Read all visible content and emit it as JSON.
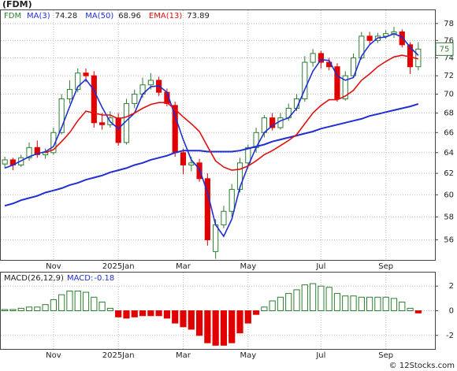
{
  "chart_data": [
    {
      "type": "candlestick",
      "title": "(FDM)",
      "symbol": "FDM",
      "categories": [
        null,
        null,
        null,
        null,
        null,
        null,
        "Nov",
        null,
        null,
        null,
        null,
        null,
        null,
        null,
        "2025Jan",
        null,
        null,
        null,
        null,
        null,
        null,
        null,
        "Mar",
        null,
        null,
        null,
        null,
        null,
        null,
        null,
        "May",
        null,
        null,
        null,
        null,
        null,
        null,
        null,
        null,
        "Jul",
        null,
        null,
        null,
        null,
        null,
        null,
        null,
        "Sep",
        null,
        null,
        null,
        null
      ],
      "open": [
        62.9,
        63.3,
        62.8,
        63.5,
        64.5,
        63.8,
        64.0,
        66,
        69.5,
        70.5,
        72.3,
        72,
        67,
        66.8,
        67.5,
        65,
        69,
        70,
        71,
        71.5,
        70.2,
        68.8,
        64,
        62.8,
        63,
        61.5,
        55.0,
        57.3,
        58.5,
        60.5,
        63,
        64.5,
        66,
        67.5,
        66.5,
        67.5,
        68.5,
        69.5,
        73.5,
        74.5,
        73.5,
        73,
        69.5,
        72,
        74,
        76.5,
        76,
        76.5,
        76.8,
        77,
        75.5,
        73
      ],
      "high": [
        63.6,
        63.5,
        63.8,
        65.0,
        65.2,
        64.4,
        66.5,
        70.0,
        71.5,
        72.8,
        72.8,
        72.5,
        68,
        68.2,
        68.0,
        69.5,
        70.5,
        71.8,
        72.3,
        71.9,
        70.6,
        69.2,
        64.4,
        63.6,
        63.4,
        62,
        57.8,
        59.0,
        61.0,
        63.5,
        64.8,
        66.5,
        67.8,
        68,
        68,
        69,
        70,
        74.2,
        75,
        74.8,
        74,
        73.4,
        72.5,
        74.5,
        77,
        77,
        76.9,
        77.2,
        77.6,
        77.3,
        75.8,
        75.8
      ],
      "low": [
        62.5,
        62.3,
        62.6,
        63.2,
        63.5,
        63.4,
        63.8,
        65.8,
        69.0,
        70.2,
        71.3,
        66.5,
        66.3,
        66.5,
        64.7,
        64.8,
        68.5,
        69.6,
        70.5,
        69.8,
        68.7,
        63.6,
        61.9,
        62.2,
        61.2,
        55.5,
        54.4,
        57.0,
        58.0,
        60.2,
        62.5,
        64.0,
        65.5,
        66.2,
        66.3,
        67.2,
        68.2,
        69.2,
        73.0,
        72.8,
        72.6,
        69.2,
        69.3,
        71.8,
        73.8,
        75.6,
        75.7,
        76.2,
        76.3,
        75.2,
        72.2,
        72.6
      ],
      "close": [
        63.3,
        62.8,
        63.5,
        64.5,
        63.8,
        64.0,
        66,
        69.5,
        70.5,
        72.3,
        72,
        67,
        66.8,
        67.5,
        65,
        69,
        70,
        71,
        71.5,
        70.2,
        69,
        64,
        62.8,
        63,
        61.5,
        56,
        57.3,
        58.5,
        60.5,
        63,
        64.5,
        66,
        67.5,
        66.5,
        67.5,
        68.5,
        69.5,
        73.5,
        74.5,
        73.5,
        73,
        69.5,
        72,
        74,
        76.5,
        76,
        76.5,
        76.8,
        77,
        75.5,
        73,
        75
      ],
      "up_color": "#2e7d32",
      "down_color": "#e00000",
      "series": [
        {
          "name": "MA(3)",
          "color": "#1f2fd0",
          "values": [
            62.5,
            62.8,
            63.2,
            63.6,
            63.9,
            64.1,
            64.6,
            66.5,
            68.7,
            70.8,
            71.6,
            70.4,
            68.6,
            67.1,
            66.4,
            67.2,
            68,
            70,
            70.8,
            70.9,
            70.2,
            67.7,
            65.3,
            63.3,
            62.4,
            60.2,
            57.3,
            56.3,
            57.8,
            60.7,
            62.7,
            64.5,
            66,
            66.7,
            67.2,
            67.5,
            68.5,
            70.5,
            72.5,
            73.8,
            73.7,
            72,
            71.5,
            71.8,
            74.2,
            75.5,
            76.3,
            76.4,
            76.8,
            76.4,
            75.2,
            74.28
          ]
        },
        {
          "name": "MA(50)",
          "color": "#1f2fd0",
          "values": [
            59.0,
            59.2,
            59.5,
            59.7,
            59.9,
            60.2,
            60.4,
            60.6,
            60.9,
            61.1,
            61.4,
            61.6,
            61.8,
            62.1,
            62.3,
            62.5,
            62.8,
            63.0,
            63.3,
            63.5,
            63.7,
            64.0,
            64.2,
            64.2,
            64.2,
            64.1,
            64.1,
            64.1,
            64.1,
            64.2,
            64.4,
            64.6,
            64.8,
            65.1,
            65.3,
            65.5,
            65.7,
            65.9,
            66.1,
            66.4,
            66.6,
            66.8,
            67.0,
            67.2,
            67.4,
            67.7,
            67.9,
            68.1,
            68.3,
            68.5,
            68.7,
            68.96
          ]
        },
        {
          "name": "EMA(13)",
          "color": "#e01010",
          "values": [
            null,
            null,
            null,
            null,
            null,
            64.0,
            64.3,
            65.1,
            66,
            67.2,
            68.2,
            68,
            67.8,
            67.8,
            67.4,
            67.6,
            68,
            68.5,
            68.9,
            69.1,
            69.1,
            68.4,
            67.6,
            66.9,
            66.1,
            64.6,
            63.2,
            62.6,
            62.3,
            62.4,
            62.7,
            63.2,
            63.8,
            64.2,
            64.7,
            65.2,
            65.8,
            66.9,
            68,
            68.8,
            69.4,
            69.4,
            69.8,
            70.4,
            71.5,
            72.2,
            73,
            73.6,
            74.1,
            74.3,
            74.1,
            73.89
          ]
        }
      ],
      "log_scale": true,
      "ylim": [
        54.3,
        79.6
      ],
      "yticks": [
        56,
        58,
        60,
        62,
        64,
        66,
        68,
        70,
        72,
        74,
        76,
        78
      ],
      "grid": true
    },
    {
      "type": "bar",
      "title": "MACD(26,12,9)",
      "name": "MACD:",
      "values": [
        0.1,
        0.1,
        0.2,
        0.3,
        0.3,
        0.5,
        0.9,
        1.3,
        1.6,
        1.6,
        1.5,
        1.1,
        0.7,
        0.2,
        -0.5,
        -0.6,
        -0.5,
        -0.4,
        -0.4,
        -0.4,
        -0.6,
        -1.0,
        -1.3,
        -1.5,
        -2.0,
        -2.6,
        -2.8,
        -2.8,
        -2.6,
        -1.8,
        -1.0,
        -0.3,
        0.3,
        0.8,
        1.1,
        1.4,
        1.7,
        2.1,
        2.2,
        2.0,
        1.9,
        1.4,
        1.2,
        1.2,
        1.1,
        1.1,
        1.1,
        1.1,
        1.0,
        0.7,
        0.2,
        -0.18
      ],
      "up_color": "#2e7d32",
      "down_color": "#e00000",
      "ylim": [
        -3.1,
        3.1
      ],
      "yticks": [
        -2,
        0,
        2
      ],
      "grid": true
    }
  ],
  "footer": "© 12Stocks.com"
}
